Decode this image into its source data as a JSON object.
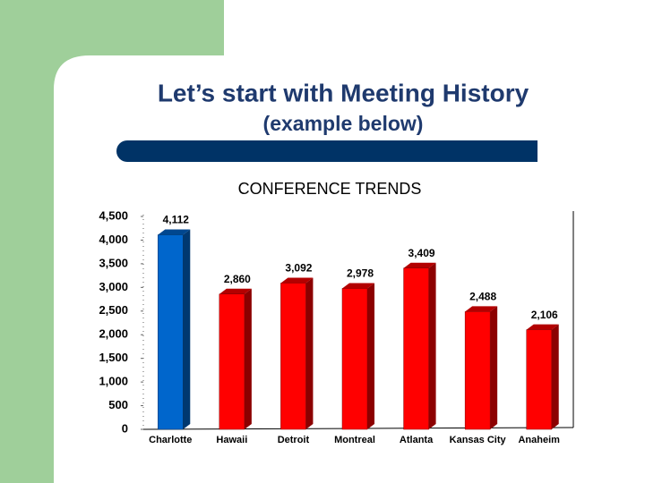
{
  "slide": {
    "title": "Let’s start with Meeting History",
    "subtitle": "(example below)"
  },
  "chart_data": {
    "type": "bar3d",
    "title": "CONFERENCE TRENDS",
    "categories": [
      "Charlotte",
      "Hawaii",
      "Detroit",
      "Montreal",
      "Atlanta",
      "Kansas City",
      "Anaheim"
    ],
    "values": [
      4112,
      2860,
      3092,
      2978,
      3409,
      2488,
      2106
    ],
    "value_labels": [
      "4,112",
      "2,860",
      "3,092",
      "2,978",
      "3,409",
      "2,488",
      "2,106"
    ],
    "colors": [
      "#0066cc",
      "#ff0000",
      "#ff0000",
      "#ff0000",
      "#ff0000",
      "#ff0000",
      "#ff0000"
    ],
    "ylim": [
      0,
      4500
    ],
    "yticks": [
      0,
      500,
      {
        "value": 1000,
        "label": "1,000"
      },
      {
        "value": 1500,
        "label": "1,500"
      },
      {
        "value": 2000,
        "label": "2,000"
      },
      {
        "value": 2500,
        "label": "2,500"
      },
      {
        "value": 3000,
        "label": "3,000"
      },
      {
        "value": 3500,
        "label": "3,500"
      },
      {
        "value": 4000,
        "label": "4,000"
      },
      {
        "value": 4500,
        "label": "4,500"
      }
    ]
  }
}
